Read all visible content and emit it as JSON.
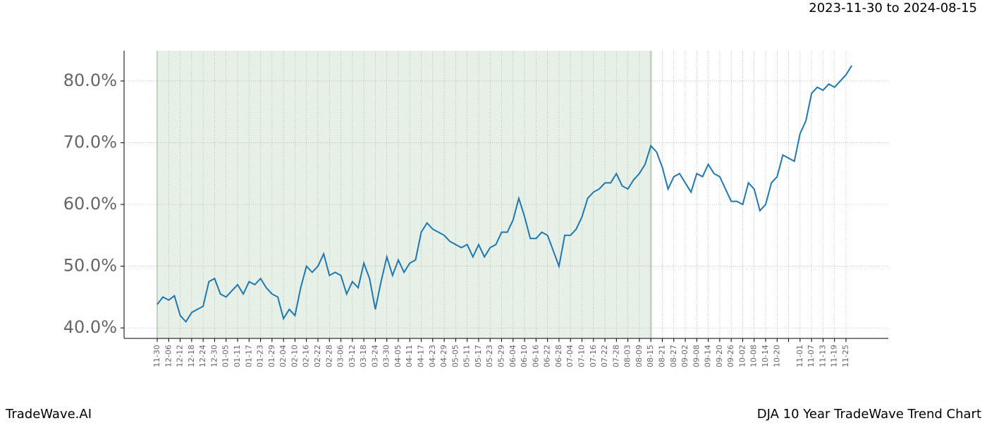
{
  "chart_data": {
    "type": "line",
    "date_range": "2023-11-30 to 2024-08-15",
    "brand": "TradeWave.AI",
    "title": "DJA 10 Year TradeWave Trend Chart",
    "categories": [
      "11-30",
      null,
      "12-06",
      null,
      "12-12",
      null,
      "12-18",
      null,
      "12-24",
      null,
      "12-30",
      null,
      "01-05",
      null,
      "01-11",
      null,
      "01-17",
      null,
      "01-23",
      null,
      "01-29",
      null,
      "02-04",
      null,
      "02-10",
      null,
      "02-16",
      null,
      "02-22",
      null,
      "02-28",
      null,
      "03-06",
      null,
      "03-12",
      null,
      "03-18",
      null,
      "03-24",
      null,
      "03-30",
      null,
      "04-05",
      null,
      "04-11",
      null,
      "04-17",
      null,
      "04-23",
      null,
      "04-29",
      null,
      "05-05",
      null,
      "05-11",
      null,
      "05-17",
      null,
      "05-23",
      null,
      "05-29",
      null,
      "06-04",
      null,
      "06-10",
      null,
      "06-16",
      null,
      "06-22",
      null,
      "06-28",
      null,
      "07-04",
      null,
      "07-10",
      null,
      "07-16",
      null,
      "07-22",
      null,
      "07-28",
      null,
      "08-03",
      null,
      "08-09",
      null,
      "08-15",
      null,
      "08-21",
      null,
      "08-27",
      null,
      "09-02",
      null,
      "09-08",
      null,
      "09-14",
      null,
      "09-20",
      null,
      "09-26",
      null,
      "10-02",
      null,
      "10-08",
      null,
      "10-14",
      null,
      "10-20",
      null,
      null,
      null,
      "11-01",
      null,
      "11-07",
      null,
      "11-13",
      null,
      "11-19",
      null,
      "11-25",
      null
    ],
    "series": [
      {
        "color": "#1f77b4",
        "values": [
          43.8,
          45,
          44.5,
          45.2,
          42,
          41,
          42.5,
          43,
          43.5,
          47.5,
          48,
          45.5,
          45,
          46,
          47,
          45.5,
          47.5,
          47,
          48,
          46.5,
          45.5,
          45,
          41.5,
          43,
          42,
          46.5,
          50,
          49,
          50,
          52,
          48.5,
          49,
          48.5,
          45.5,
          47.5,
          46.5,
          50.5,
          48,
          43,
          47.5,
          51.5,
          48.5,
          51,
          49,
          50.5,
          51,
          55.5,
          57,
          56,
          55.5,
          55,
          54,
          53.5,
          53,
          53.5,
          51.5,
          53.5,
          51.5,
          53,
          53.5,
          55.5,
          55.5,
          57.5,
          61,
          58,
          54.5,
          54.5,
          55.5,
          55,
          52.5,
          50,
          55,
          55,
          56,
          58,
          61,
          62,
          62.5,
          63.5,
          63.5,
          65,
          63,
          62.5,
          64,
          65,
          66.5,
          69.5,
          68.5,
          66,
          62.5,
          64.5,
          65,
          63.5,
          62,
          65,
          64.5,
          66.5,
          65,
          64.5,
          62.5,
          60.5,
          60.5,
          60,
          63.5,
          62.5,
          59,
          60,
          63.5,
          64.5,
          68,
          67.5,
          67,
          71.5,
          73.5,
          78,
          79,
          78.5,
          79.5,
          79,
          80,
          81,
          82.5
        ]
      }
    ],
    "highlight": [
      "11-30",
      "08-15"
    ],
    "highlight_color": "#e6f0e6",
    "ylim": [
      38.3,
      84.9
    ],
    "yticks": [
      {
        "value": 40,
        "label": "40.0%"
      },
      {
        "value": 50,
        "label": "50.0%"
      },
      {
        "value": 60,
        "label": "60.0%"
      },
      {
        "value": 70,
        "label": "70.0%"
      },
      {
        "value": 80,
        "label": "80.0%"
      }
    ],
    "grid": true
  }
}
